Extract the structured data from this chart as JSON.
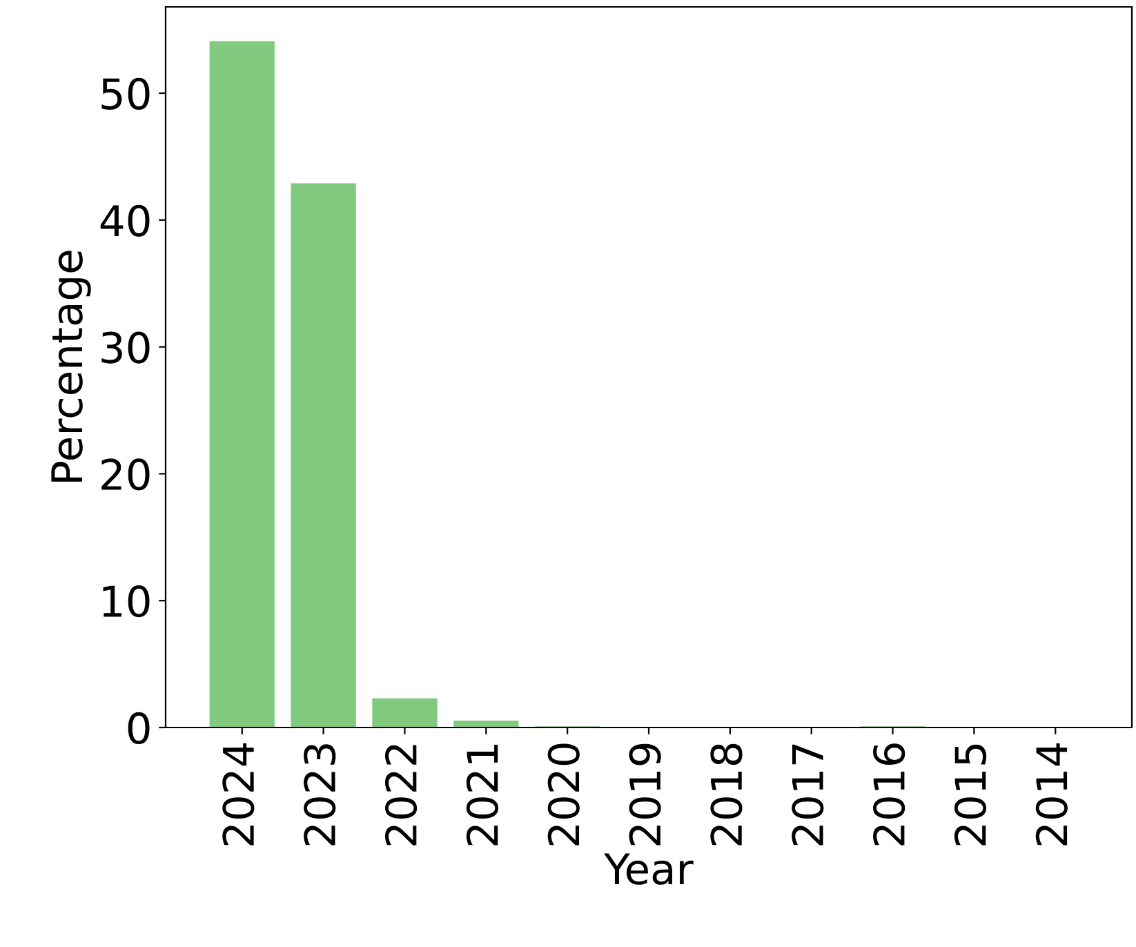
{
  "chart_data": {
    "type": "bar",
    "xlabel": "Year",
    "ylabel": "Percentage",
    "categories": [
      "2024",
      "2023",
      "2022",
      "2021",
      "2020",
      "2019",
      "2018",
      "2017",
      "2016",
      "2015",
      "2014"
    ],
    "values": [
      54.1,
      42.9,
      2.3,
      0.55,
      0.1,
      0,
      0,
      0,
      0.1,
      0,
      0
    ],
    "color": "#81c97f",
    "ylim": [
      0,
      56.8
    ],
    "yticks": [
      0,
      10,
      20,
      30,
      40,
      50
    ],
    "grid": false
  }
}
